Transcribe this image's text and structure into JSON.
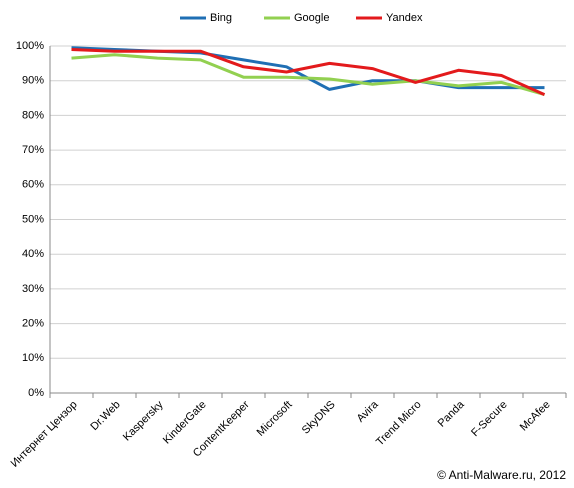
{
  "chart_data": {
    "type": "line",
    "categories": [
      "Интернет Цензор",
      "Dr.Web",
      "Kaspersky",
      "KinderGate",
      "ContentKeeper",
      "Microsoft",
      "SkyDNS",
      "Avira",
      "Trend Micro",
      "Panda",
      "F-Secure",
      "McAfee"
    ],
    "series": [
      {
        "name": "Bing",
        "color": "#1f6fb4",
        "values": [
          99.5,
          99,
          98.5,
          98,
          96,
          94,
          87.5,
          90,
          90,
          88,
          88,
          88
        ]
      },
      {
        "name": "Google",
        "color": "#92d050",
        "values": [
          96.5,
          97.5,
          96.5,
          96,
          91,
          91,
          90.5,
          89,
          90,
          88.5,
          89.5,
          86
        ]
      },
      {
        "name": "Yandex",
        "color": "#e31a1c",
        "values": [
          99,
          98.5,
          98.5,
          98.5,
          94,
          92.5,
          95,
          93.5,
          89.5,
          93,
          91.5,
          86
        ]
      }
    ],
    "ylim": [
      0,
      100
    ],
    "yticks": [
      {
        "value": 0,
        "label": "0%"
      },
      {
        "value": 10,
        "label": "10%"
      },
      {
        "value": 20,
        "label": "20%"
      },
      {
        "value": 30,
        "label": "30%"
      },
      {
        "value": 40,
        "label": "40%"
      },
      {
        "value": 50,
        "label": "50%"
      },
      {
        "value": 60,
        "label": "60%"
      },
      {
        "value": 70,
        "label": "70%"
      },
      {
        "value": 80,
        "label": "80%"
      },
      {
        "value": 90,
        "label": "90%"
      },
      {
        "value": 100,
        "label": "100%"
      }
    ],
    "grid": true,
    "legend": "top",
    "footer": "© Anti-Malware.ru,  2012"
  }
}
